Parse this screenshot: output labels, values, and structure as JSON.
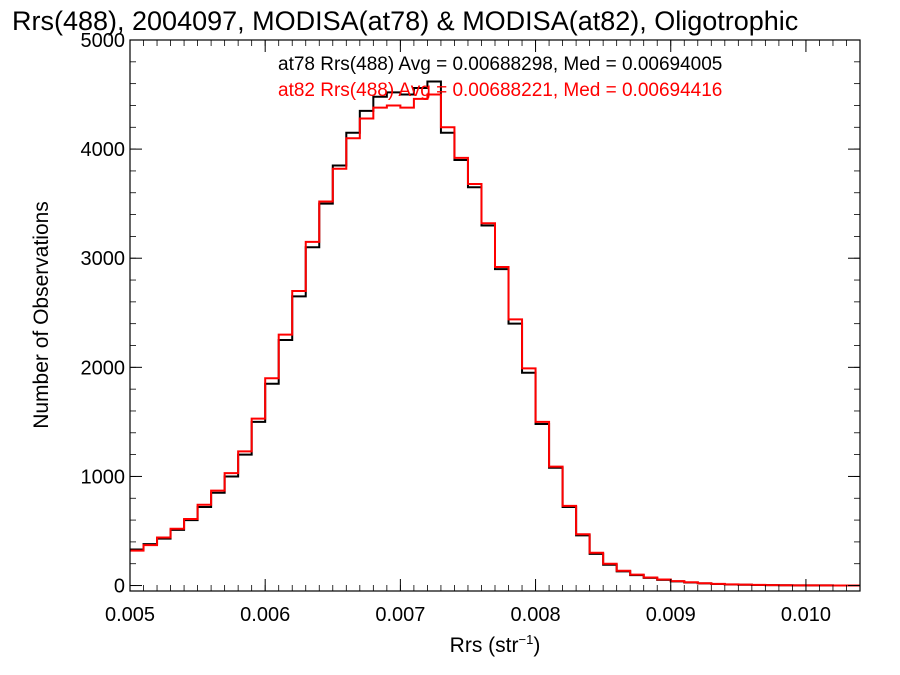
{
  "chart_data": {
    "type": "line",
    "title": "Rrs(488), 2004097, MODISA(at78) & MODISA(at82), Oligotrophic",
    "xlabel": "Rrs (str",
    "xlabel_sup": "−1",
    "xlabel_close": ")",
    "ylabel": "Number of Observations",
    "xlim": [
      0.005,
      0.0104
    ],
    "ylim": [
      -50,
      5000
    ],
    "x_ticks": [
      "0.005",
      "0.006",
      "0.007",
      "0.008",
      "0.009",
      "0.010"
    ],
    "y_ticks": [
      "0",
      "1000",
      "2000",
      "3000",
      "4000",
      "5000"
    ],
    "grid": false,
    "annotations": [
      {
        "text": "at78 Rrs(488) Avg = 0.00688298, Med = 0.00694005",
        "color": "#000000"
      },
      {
        "text": "at82 Rrs(488) Avg = 0.00688221, Med = 0.00694416",
        "color": "#ff0000"
      }
    ],
    "series": [
      {
        "color": "#000000",
        "x": [
          0.005,
          0.0051,
          0.0052,
          0.0053,
          0.0054,
          0.0055,
          0.0056,
          0.0057,
          0.0058,
          0.0059,
          0.006,
          0.0061,
          0.0062,
          0.0063,
          0.0064,
          0.0065,
          0.0066,
          0.0067,
          0.0068,
          0.0069,
          0.007,
          0.0071,
          0.0072,
          0.0073,
          0.0074,
          0.0075,
          0.0076,
          0.0077,
          0.0078,
          0.0079,
          0.008,
          0.0081,
          0.0082,
          0.0083,
          0.0084,
          0.0085,
          0.0086,
          0.0087,
          0.0088,
          0.0089,
          0.009,
          0.0091,
          0.0092,
          0.0093,
          0.0094,
          0.0095,
          0.0096,
          0.0097,
          0.0098,
          0.0099,
          0.01,
          0.0102,
          0.0104
        ],
        "values": [
          330,
          380,
          430,
          510,
          600,
          720,
          850,
          1000,
          1200,
          1500,
          1850,
          2250,
          2650,
          3100,
          3500,
          3850,
          4150,
          4350,
          4480,
          4520,
          4500,
          4560,
          4620,
          4150,
          3900,
          3650,
          3300,
          2900,
          2400,
          1950,
          1480,
          1080,
          720,
          460,
          290,
          190,
          130,
          95,
          70,
          52,
          38,
          28,
          20,
          14,
          10,
          7,
          5,
          4,
          3,
          2,
          2,
          1,
          1
        ]
      },
      {
        "color": "#ff0000",
        "x": [
          0.005,
          0.0051,
          0.0052,
          0.0053,
          0.0054,
          0.0055,
          0.0056,
          0.0057,
          0.0058,
          0.0059,
          0.006,
          0.0061,
          0.0062,
          0.0063,
          0.0064,
          0.0065,
          0.0066,
          0.0067,
          0.0068,
          0.0069,
          0.007,
          0.0071,
          0.0072,
          0.0073,
          0.0074,
          0.0075,
          0.0076,
          0.0077,
          0.0078,
          0.0079,
          0.008,
          0.0081,
          0.0082,
          0.0083,
          0.0084,
          0.0085,
          0.0086,
          0.0087,
          0.0088,
          0.0089,
          0.009,
          0.0091,
          0.0092,
          0.0093,
          0.0094,
          0.0095,
          0.0096,
          0.0097,
          0.0098,
          0.0099,
          0.01,
          0.0102,
          0.0104
        ],
        "values": [
          320,
          370,
          440,
          520,
          610,
          740,
          870,
          1030,
          1230,
          1530,
          1900,
          2300,
          2700,
          3150,
          3520,
          3820,
          4100,
          4280,
          4380,
          4400,
          4380,
          4460,
          4500,
          4200,
          3920,
          3680,
          3320,
          2920,
          2440,
          1990,
          1500,
          1090,
          730,
          470,
          300,
          200,
          135,
          100,
          74,
          55,
          40,
          30,
          21,
          15,
          11,
          8,
          6,
          4,
          3,
          2,
          2,
          1,
          1
        ]
      }
    ]
  }
}
